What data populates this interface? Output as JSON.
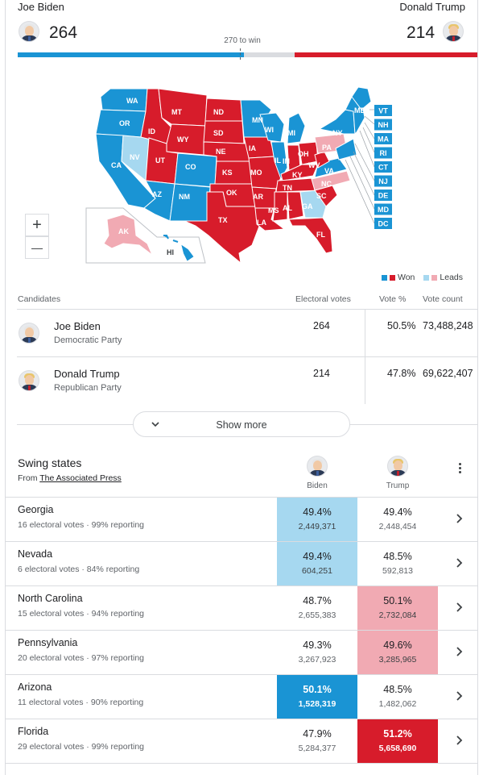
{
  "header": {
    "left_candidate": "Joe Biden",
    "right_candidate": "Donald Trump",
    "left_votes": "264",
    "right_votes": "214",
    "to_win": "270 to win",
    "left_color": "#1a94d4",
    "right_color": "#d71c2b",
    "undecided_color": "#dadce0",
    "left_fraction": 0.4907,
    "right_fraction": 0.3978
  },
  "map": {
    "states": [
      "WA",
      "OR",
      "CA",
      "NV",
      "ID",
      "MT",
      "WY",
      "UT",
      "AZ",
      "CO",
      "NM",
      "ND",
      "SD",
      "NE",
      "KS",
      "OK",
      "TX",
      "MN",
      "IA",
      "MO",
      "AR",
      "LA",
      "WI",
      "IL",
      "MI",
      "IN",
      "KY",
      "TN",
      "MS",
      "AL",
      "GA",
      "FL",
      "OH",
      "WV",
      "VA",
      "NC",
      "SC",
      "PA",
      "NY",
      "ME",
      "AK",
      "HI"
    ],
    "east_callouts": [
      "VT",
      "NH",
      "MA",
      "RI",
      "CT",
      "NJ",
      "DE",
      "MD",
      "DC"
    ],
    "zoom_in": "+",
    "zoom_out": "—"
  },
  "legend": {
    "won": "Won",
    "leads": "Leads",
    "won_blue": "#1a94d4",
    "won_red": "#d71c2b",
    "lead_blue": "#a6d8f0",
    "lead_red": "#f1aab3"
  },
  "candidates_table": {
    "headers": [
      "Candidates",
      "Electoral votes",
      "Vote %",
      "Vote count"
    ],
    "rows": [
      {
        "name": "Joe Biden",
        "party": "Democratic Party",
        "electoral": "264",
        "pct": "50.5%",
        "count": "73,488,248"
      },
      {
        "name": "Donald Trump",
        "party": "Republican Party",
        "electoral": "214",
        "pct": "47.8%",
        "count": "69,622,407"
      }
    ],
    "show_more": "Show more"
  },
  "swing": {
    "title": "Swing states",
    "from_prefix": "From",
    "source": "The Associated Press",
    "col_left": "Biden",
    "col_right": "Trump",
    "rows": [
      {
        "state": "Georgia",
        "sub": "16 electoral votes · 99% reporting",
        "b_pct": "49.4%",
        "b_votes": "2,449,371",
        "t_pct": "49.4%",
        "t_votes": "2,448,454",
        "b_status": "lead",
        "t_status": "none"
      },
      {
        "state": "Nevada",
        "sub": "6 electoral votes · 84% reporting",
        "b_pct": "49.4%",
        "b_votes": "604,251",
        "t_pct": "48.5%",
        "t_votes": "592,813",
        "b_status": "lead",
        "t_status": "none"
      },
      {
        "state": "North Carolina",
        "sub": "15 electoral votes · 94% reporting",
        "b_pct": "48.7%",
        "b_votes": "2,655,383",
        "t_pct": "50.1%",
        "t_votes": "2,732,084",
        "b_status": "none",
        "t_status": "lead"
      },
      {
        "state": "Pennsylvania",
        "sub": "20 electoral votes · 97% reporting",
        "b_pct": "49.3%",
        "b_votes": "3,267,923",
        "t_pct": "49.6%",
        "t_votes": "3,285,965",
        "b_status": "none",
        "t_status": "lead"
      },
      {
        "state": "Arizona",
        "sub": "11 electoral votes · 90% reporting",
        "b_pct": "50.1%",
        "b_votes": "1,528,319",
        "t_pct": "48.5%",
        "t_votes": "1,482,062",
        "b_status": "won",
        "t_status": "none"
      },
      {
        "state": "Florida",
        "sub": "29 electoral votes · 99% reporting",
        "b_pct": "47.9%",
        "b_votes": "5,284,377",
        "t_pct": "51.2%",
        "t_votes": "5,658,690",
        "b_status": "none",
        "t_status": "won"
      }
    ]
  }
}
